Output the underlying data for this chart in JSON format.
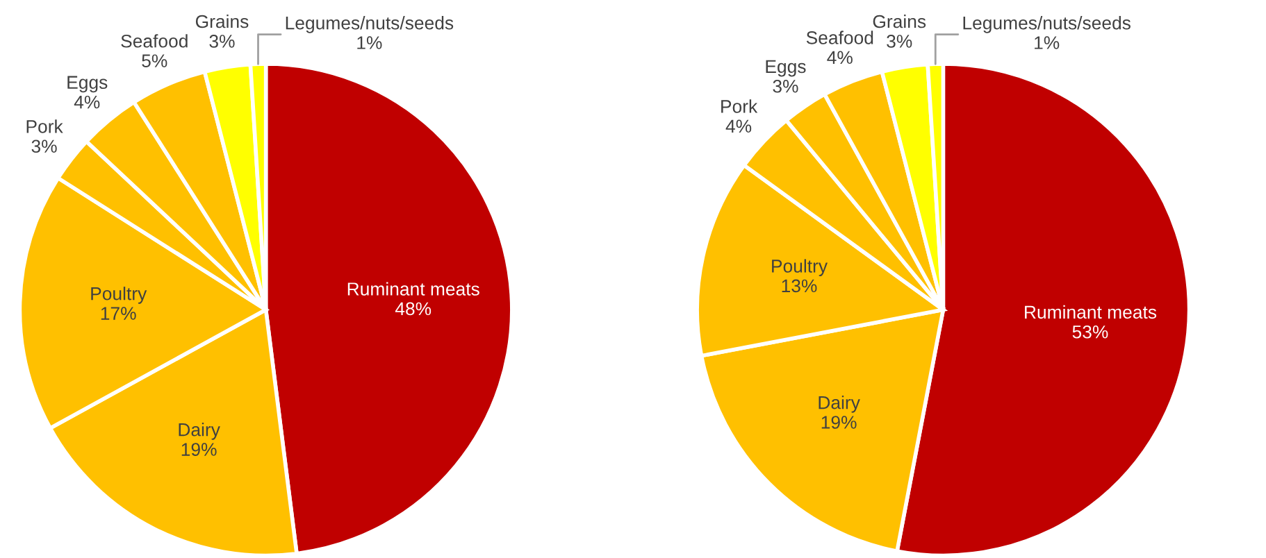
{
  "chart_data": [
    {
      "type": "pie",
      "categories": [
        "Ruminant meats",
        "Dairy",
        "Poultry",
        "Pork",
        "Eggs",
        "Seafood",
        "Grains",
        "Legumes/nuts/seeds"
      ],
      "values": [
        48,
        19,
        17,
        3,
        4,
        5,
        3,
        1
      ],
      "value_labels": [
        "48%",
        "19%",
        "17%",
        "3%",
        "4%",
        "5%",
        "3%",
        "1%"
      ],
      "colors": [
        "#c00000",
        "#ffc000",
        "#ffc000",
        "#ffc000",
        "#ffc000",
        "#ffc000",
        "#ffff00",
        "#ffff00"
      ]
    },
    {
      "type": "pie",
      "categories": [
        "Ruminant meats",
        "Dairy",
        "Poultry",
        "Pork",
        "Eggs",
        "Seafood",
        "Grains",
        "Legumes/nuts/seeds"
      ],
      "values": [
        53,
        19,
        13,
        4,
        3,
        4,
        3,
        1
      ],
      "value_labels": [
        "53%",
        "19%",
        "13%",
        "4%",
        "3%",
        "4%",
        "3%",
        "1%"
      ],
      "colors": [
        "#c00000",
        "#ffc000",
        "#ffc000",
        "#ffc000",
        "#ffc000",
        "#ffc000",
        "#ffff00",
        "#ffff00"
      ]
    }
  ]
}
